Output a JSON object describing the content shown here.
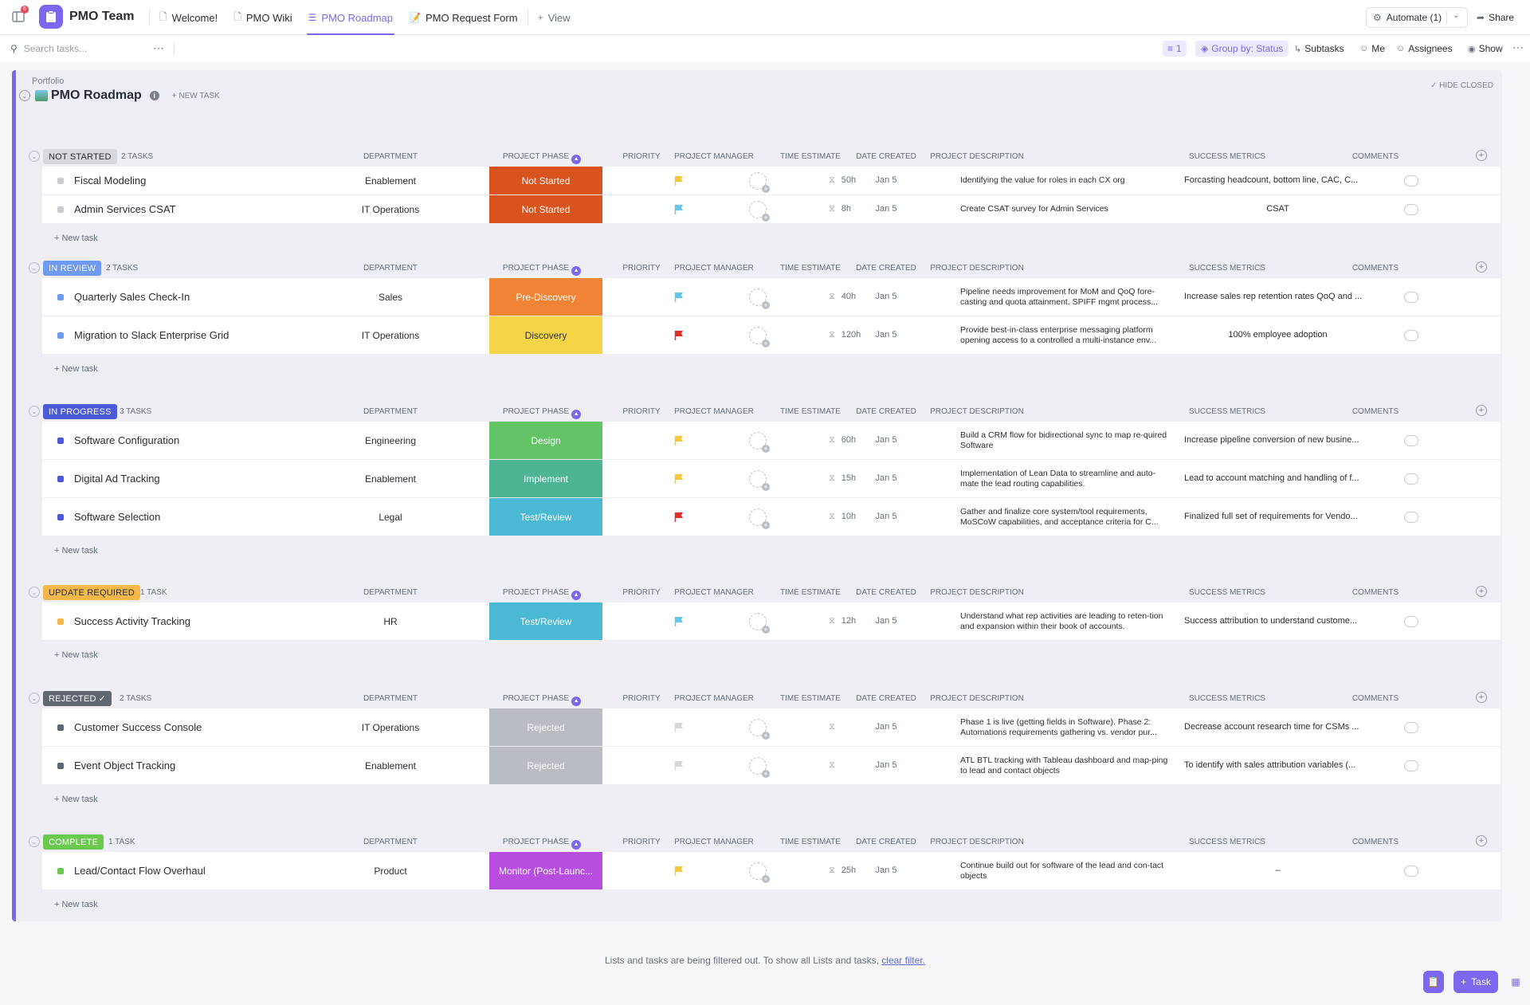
{
  "topbar": {
    "notification_count": "6",
    "space_name": "PMO Team",
    "tabs": [
      {
        "label": "Welcome!",
        "icon": "doc-icon"
      },
      {
        "label": "PMO Wiki",
        "icon": "doc-icon"
      },
      {
        "label": "PMO Roadmap",
        "icon": "list-icon",
        "active": true
      },
      {
        "label": "PMO Request Form",
        "icon": "form-icon"
      }
    ],
    "add_view_label": "View",
    "automate_label": "Automate (1)",
    "share_label": "Share"
  },
  "toolbar": {
    "search_placeholder": "Search tasks...",
    "filter_count": "1",
    "group_by_label": "Group by: Status",
    "subtasks_label": "Subtasks",
    "me_label": "Me",
    "assignees_label": "Assignees",
    "show_label": "Show"
  },
  "list": {
    "breadcrumb": "Portfolio",
    "title": "PMO Roadmap",
    "new_task_label": "+ NEW TASK",
    "hide_closed_label": "HIDE CLOSED"
  },
  "columns": {
    "department": "DEPARTMENT",
    "phase": "PROJECT PHASE",
    "priority": "PRIORITY",
    "manager": "PROJECT MANAGER",
    "estimate": "TIME ESTIMATE",
    "created": "DATE CREATED",
    "description": "PROJECT DESCRIPTION",
    "metrics": "SUCCESS METRICS",
    "comments": "COMMENTS"
  },
  "colors": {
    "accent": "#7b68ee",
    "not_started": "#d8d8dc",
    "in_review": "#6e9bf0",
    "in_progress": "#4b5ad9",
    "update_required": "#f3b84a",
    "rejected": "#606770",
    "complete": "#6bc950"
  },
  "new_task_row_label": "+ New task",
  "groups": [
    {
      "status": "NOT STARTED",
      "count": "2 TASKS",
      "pill_bg": "#d8d8dc",
      "pill_fg": "#292d34",
      "square": "#c9cbd1",
      "tasks": [
        {
          "name": "Fiscal Modeling",
          "department": "Enablement",
          "phase": "Not Started",
          "phase_color": "#d9531e",
          "priority": "flag-yellow",
          "estimate": "50h",
          "created": "Jan 5",
          "description": "Identifying the value for roles in each CX org",
          "metrics": "Forcasting headcount, bottom line, CAC, C...",
          "metrics_center": false
        },
        {
          "name": "Admin Services CSAT",
          "department": "IT Operations",
          "phase": "Not Started",
          "phase_color": "#d9531e",
          "priority": "flag-blue",
          "estimate": "8h",
          "created": "Jan 5",
          "description": "Create CSAT survey for Admin Services",
          "metrics": "CSAT",
          "metrics_center": true
        }
      ]
    },
    {
      "status": "IN REVIEW",
      "count": "2 TASKS",
      "pill_bg": "#6e9bf0",
      "pill_fg": "#ffffff",
      "square": "#6e9bf0",
      "tasks": [
        {
          "name": "Quarterly Sales Check-In",
          "department": "Sales",
          "phase": "Pre-Discovery",
          "phase_color": "#f08434",
          "priority": "flag-blue",
          "estimate": "40h",
          "created": "Jan 5",
          "description": "Pipeline needs improvement for MoM and QoQ fore-casting and quota attainment.  SPIFF mgmt process...",
          "metrics": "Increase sales rep retention rates QoQ and ...",
          "metrics_center": false
        },
        {
          "name": "Migration to Slack Enterprise Grid",
          "department": "IT Operations",
          "phase": "Discovery",
          "phase_color": "#f5d547",
          "phase_fg": "#292d34",
          "priority": "flag-red",
          "estimate": "120h",
          "created": "Jan 5",
          "description": "Provide best-in-class enterprise messaging platform opening access to a controlled a multi-instance env...",
          "metrics": "100% employee adoption",
          "metrics_center": true
        }
      ]
    },
    {
      "status": "IN PROGRESS",
      "count": "3 TASKS",
      "pill_bg": "#4b5ad9",
      "pill_fg": "#ffffff",
      "square": "#4b5ad9",
      "tasks": [
        {
          "name": "Software Configuration",
          "department": "Engineering",
          "phase": "Design",
          "phase_color": "#62c466",
          "priority": "flag-yellow",
          "estimate": "60h",
          "created": "Jan 5",
          "description": "Build a CRM flow for bidirectional sync to map re-quired Software",
          "metrics": "Increase pipeline conversion of new busine...",
          "metrics_center": false
        },
        {
          "name": "Digital Ad Tracking",
          "department": "Enablement",
          "phase": "Implement",
          "phase_color": "#4db594",
          "priority": "flag-yellow",
          "estimate": "15h",
          "created": "Jan 5",
          "description": "Implementation of Lean Data to streamline and auto-mate the lead routing capabilities.",
          "metrics": "Lead to account matching and handling of f...",
          "metrics_center": false
        },
        {
          "name": "Software Selection",
          "department": "Legal",
          "phase": "Test/Review",
          "phase_color": "#4bb8d4",
          "priority": "flag-red",
          "estimate": "10h",
          "created": "Jan 5",
          "description": "Gather and finalize core system/tool requirements, MoSCoW capabilities, and acceptance criteria for C...",
          "metrics": "Finalized full set of requirements for Vendo...",
          "metrics_center": false
        }
      ]
    },
    {
      "status": "UPDATE REQUIRED",
      "count": "1 TASK",
      "pill_bg": "#f3b84a",
      "pill_fg": "#292d34",
      "square": "#f3b84a",
      "tasks": [
        {
          "name": "Success Activity Tracking",
          "department": "HR",
          "phase": "Test/Review",
          "phase_color": "#4bb8d4",
          "priority": "flag-blue",
          "estimate": "12h",
          "created": "Jan 5",
          "description": " Understand what rep activities are leading to reten-tion and expansion within their book of accounts.",
          "metrics": "Success attribution to understand custome...",
          "metrics_center": false
        }
      ]
    },
    {
      "status": "REJECTED",
      "count": "2 TASKS",
      "pill_bg": "#606770",
      "pill_fg": "#ffffff",
      "square": "#606770",
      "check": true,
      "tasks": [
        {
          "name": "Customer Success Console",
          "department": "IT Operations",
          "phase": "Rejected",
          "phase_color": "#b9bcc2",
          "priority": "flag-gray",
          "estimate": "",
          "created": "Jan 5",
          "description": "Phase 1 is live (getting fields in Software).  Phase 2: Automations requirements gathering vs. vendor pur...",
          "metrics": "Decrease account research time for CSMs ...",
          "metrics_center": false
        },
        {
          "name": "Event Object Tracking",
          "department": "Enablement",
          "phase": "Rejected",
          "phase_color": "#b9bcc2",
          "priority": "flag-gray",
          "estimate": "",
          "created": "Jan 5",
          "description": "ATL BTL tracking with Tableau dashboard and map-ping to lead and contact objects",
          "metrics": "To identify with sales attribution variables (...",
          "metrics_center": false
        }
      ]
    },
    {
      "status": "COMPLETE",
      "count": "1 TASK",
      "pill_bg": "#6bc950",
      "pill_fg": "#ffffff",
      "square": "#6bc950",
      "tasks": [
        {
          "name": "Lead/Contact Flow Overhaul",
          "department": "Product",
          "phase": "Monitor (Post-Launc...",
          "phase_color": "#b84ee0",
          "priority": "flag-yellow",
          "estimate": "25h",
          "created": "Jan 5",
          "description": "Continue build out for software of the lead and con-tact objects",
          "metrics": "–",
          "metrics_center": true
        }
      ]
    }
  ],
  "footer": {
    "note": "Lists and tasks are being filtered out. To show all Lists and tasks, ",
    "link": "clear filter.",
    "task_button": "Task"
  }
}
